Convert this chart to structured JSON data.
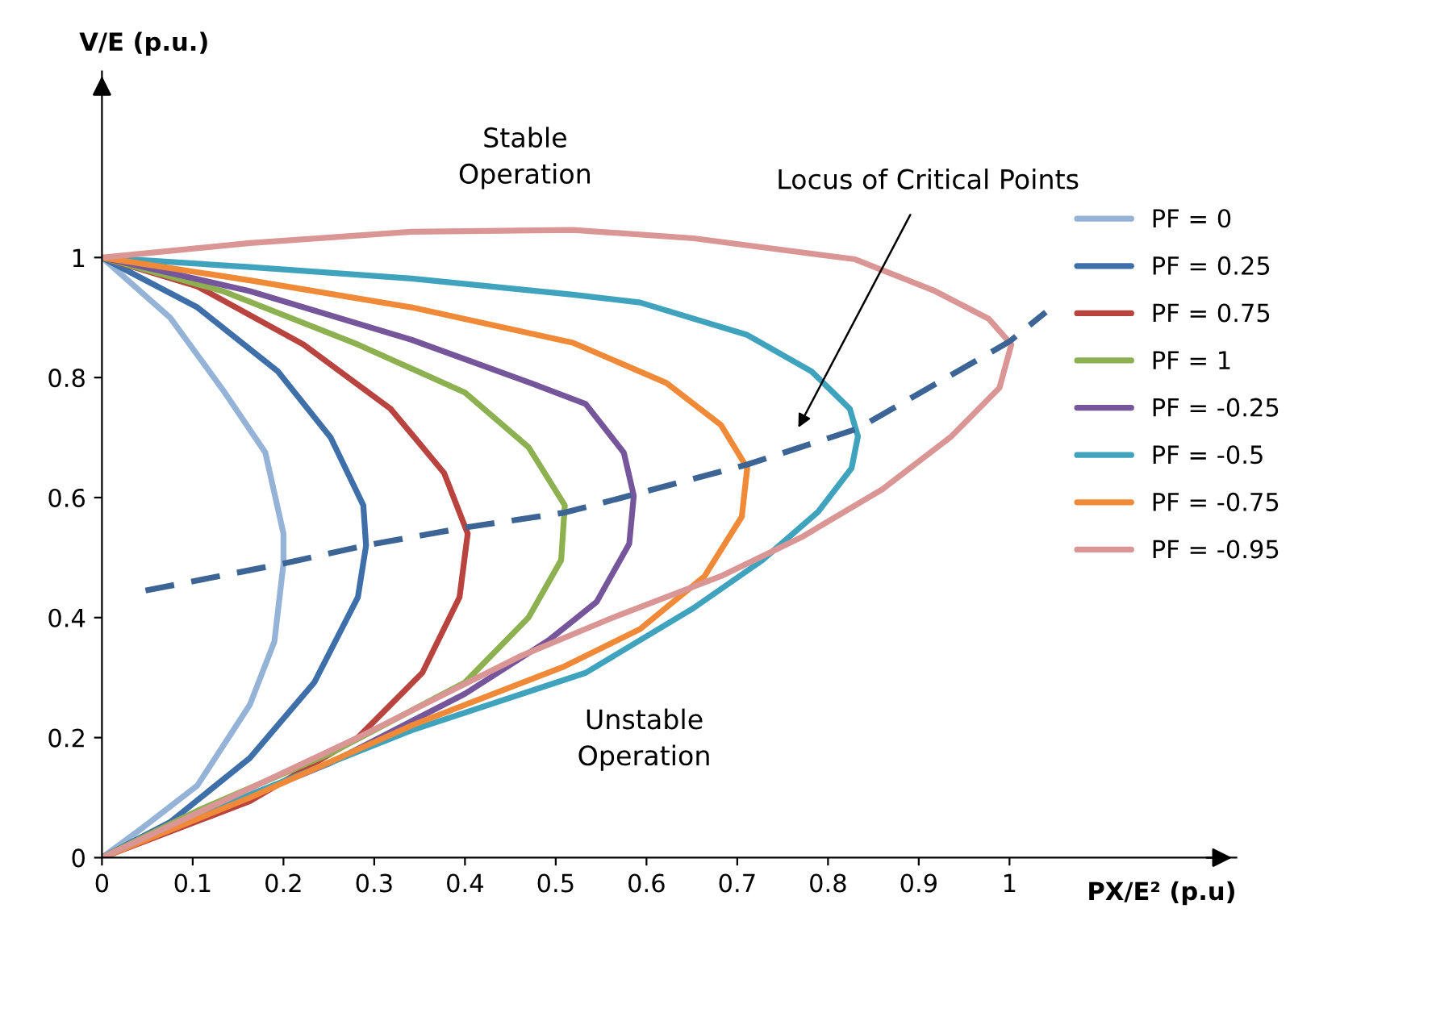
{
  "chart_data": {
    "type": "line",
    "xlabel": "PX/E² (p.u)",
    "ylabel": "V/E (p.u.)",
    "xlim": [
      0,
      1.25
    ],
    "ylim": [
      0,
      1.31
    ],
    "xticks": [
      0,
      0.1,
      0.2,
      0.3,
      0.4,
      0.5,
      0.6,
      0.7,
      0.8,
      0.9,
      1
    ],
    "yticks": [
      0,
      0.2,
      0.4,
      0.6,
      0.8,
      1
    ],
    "grid": false,
    "legend": "right",
    "marker": "none",
    "annotations": [
      "Stable\nOperation",
      "Unstable\nOperation",
      "Locus of Critical Points"
    ],
    "series": [
      {
        "name": "PF = 0",
        "color": "#95b3d7",
        "x": [
          0,
          0.075,
          0.133,
          0.18,
          0.2,
          0.2,
          0.19,
          0.163,
          0.105,
          0.045,
          0
        ],
        "values": [
          1,
          0.9,
          0.78,
          0.675,
          0.54,
          0.49,
          0.36,
          0.255,
          0.12,
          0.05,
          0
        ]
      },
      {
        "name": "PF = 0.25",
        "color": "#3e6fa8",
        "x": [
          0,
          0.105,
          0.194,
          0.252,
          0.288,
          0.291,
          0.282,
          0.234,
          0.163,
          0.075,
          0
        ],
        "values": [
          1,
          0.917,
          0.81,
          0.7,
          0.587,
          0.52,
          0.434,
          0.292,
          0.166,
          0.059,
          0
        ]
      },
      {
        "name": "PF = 0.75",
        "color": "#b8433f",
        "x": [
          0,
          0.105,
          0.222,
          0.318,
          0.377,
          0.403,
          0.394,
          0.353,
          0.282,
          0.163,
          0
        ],
        "values": [
          1,
          0.952,
          0.855,
          0.748,
          0.641,
          0.54,
          0.434,
          0.308,
          0.2,
          0.094,
          0
        ]
      },
      {
        "name": "PF = 1",
        "color": "#8db050",
        "x": [
          0,
          0.133,
          0.282,
          0.4,
          0.47,
          0.51,
          0.506,
          0.47,
          0.4,
          0.252,
          0.105,
          0
        ],
        "values": [
          1,
          0.944,
          0.855,
          0.775,
          0.684,
          0.587,
          0.496,
          0.4,
          0.292,
          0.174,
          0.078,
          0
        ]
      },
      {
        "name": "PF = -0.25",
        "color": "#76569b",
        "x": [
          0,
          0.163,
          0.341,
          0.474,
          0.533,
          0.575,
          0.586,
          0.581,
          0.545,
          0.492,
          0.4,
          0.252,
          0.105,
          0
        ],
        "values": [
          1,
          0.944,
          0.863,
          0.79,
          0.756,
          0.675,
          0.603,
          0.523,
          0.426,
          0.362,
          0.273,
          0.158,
          0.067,
          0
        ]
      },
      {
        "name": "PF = -0.5",
        "color": "#40a3bd",
        "x": [
          0,
          0.163,
          0.341,
          0.519,
          0.593,
          0.711,
          0.782,
          0.824,
          0.833,
          0.826,
          0.789,
          0.728,
          0.652,
          0.533,
          0.341,
          0.163,
          0
        ],
        "values": [
          1,
          0.984,
          0.965,
          0.938,
          0.925,
          0.871,
          0.81,
          0.748,
          0.702,
          0.649,
          0.576,
          0.496,
          0.416,
          0.308,
          0.212,
          0.105,
          0
        ]
      },
      {
        "name": "PF = -0.75",
        "color": "#f08a38",
        "x": [
          0,
          0.163,
          0.341,
          0.519,
          0.622,
          0.682,
          0.711,
          0.705,
          0.664,
          0.593,
          0.51,
          0.341,
          0.163,
          0
        ],
        "values": [
          1,
          0.962,
          0.917,
          0.858,
          0.791,
          0.721,
          0.649,
          0.568,
          0.469,
          0.381,
          0.319,
          0.22,
          0.1,
          0
        ]
      },
      {
        "name": "PF = -0.95",
        "color": "#d99694",
        "x": [
          0,
          0.163,
          0.341,
          0.519,
          0.652,
          0.83,
          0.918,
          0.977,
          1.002,
          0.989,
          0.936,
          0.86,
          0.771,
          0.682,
          0.563,
          0.46,
          0.282,
          0.133,
          0
        ],
        "values": [
          1,
          1.024,
          1.043,
          1.046,
          1.032,
          0.997,
          0.944,
          0.898,
          0.855,
          0.783,
          0.702,
          0.614,
          0.534,
          0.469,
          0.4,
          0.335,
          0.2,
          0.094,
          0
        ]
      },
      {
        "color": "#3c6494",
        "line_style": "dashed",
        "x": [
          0.048,
          0.2,
          0.29,
          0.4,
          0.51,
          0.586,
          0.711,
          0.833,
          1.0,
          1.04
        ],
        "values": [
          0.445,
          0.49,
          0.52,
          0.55,
          0.575,
          0.605,
          0.655,
          0.715,
          0.86,
          0.909
        ]
      }
    ]
  }
}
